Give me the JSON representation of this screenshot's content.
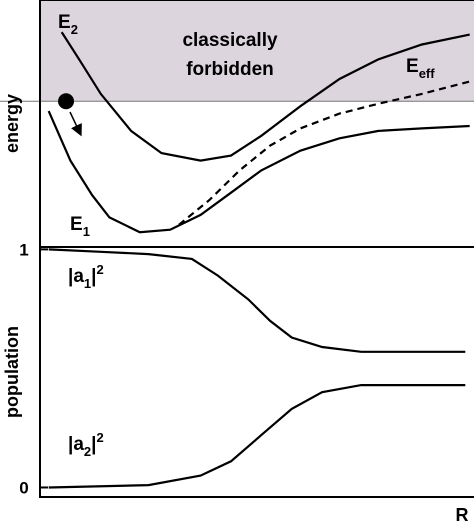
{
  "chart_data": [
    {
      "type": "line",
      "y_label": "energy",
      "annotation": [
        "classically",
        "forbidden"
      ],
      "shade_from": 5.9,
      "shade_color": "#ddd5de",
      "xlim": [
        0,
        10
      ],
      "ylim": [
        0,
        10
      ],
      "particle": {
        "x": 0.6,
        "y": 5.9
      },
      "series": [
        {
          "name_main": "E",
          "name_sub": "2",
          "color": "#000",
          "dash": false,
          "x": [
            0.5,
            0.9,
            1.4,
            2.1,
            2.8,
            3.7,
            4.4,
            5.1,
            6.0,
            6.9,
            7.8,
            8.8,
            9.9
          ],
          "values": [
            8.7,
            7.6,
            6.2,
            4.7,
            3.8,
            3.5,
            3.7,
            4.5,
            5.7,
            6.8,
            7.6,
            8.2,
            8.6
          ]
        },
        {
          "name_main": "E",
          "name_sub": "1",
          "color": "#000",
          "dash": false,
          "x": [
            0.2,
            0.7,
            1.2,
            1.6,
            2.3,
            3.0,
            3.7,
            4.4,
            5.1,
            6.0,
            6.9,
            7.8,
            8.8,
            9.9
          ],
          "values": [
            5.5,
            3.5,
            2.1,
            1.2,
            0.6,
            0.7,
            1.3,
            2.2,
            3.1,
            3.9,
            4.4,
            4.7,
            4.8,
            4.9
          ]
        },
        {
          "name_main": "E",
          "name_sub": "eff",
          "color": "#000",
          "dash": true,
          "x": [
            3.2,
            3.9,
            4.6,
            5.3,
            6.0,
            6.9,
            7.8,
            8.8,
            9.9
          ],
          "values": [
            0.9,
            1.9,
            3.1,
            4.1,
            4.8,
            5.4,
            5.8,
            6.2,
            6.7
          ]
        }
      ]
    },
    {
      "type": "line",
      "y_label": "population",
      "x_label": "R",
      "xlim": [
        0,
        10
      ],
      "ylim": [
        -0.04,
        1.01
      ],
      "yticks": [
        0,
        1
      ],
      "series": [
        {
          "name_main": "|a",
          "name_sub": "1",
          "name_close": "|",
          "name_sup": "2",
          "color": "#000",
          "dash": false,
          "x": [
            0.2,
            1.4,
            2.5,
            3.5,
            4.1,
            4.8,
            5.3,
            5.8,
            6.5,
            7.4,
            8.8,
            9.8
          ],
          "values": [
            1.0,
            0.99,
            0.98,
            0.96,
            0.89,
            0.79,
            0.7,
            0.63,
            0.59,
            0.57,
            0.57,
            0.57
          ]
        },
        {
          "name_main": "|a",
          "name_sub": "2",
          "name_close": "|",
          "name_sup": "2",
          "color": "#000",
          "dash": false,
          "x": [
            0.2,
            2.5,
            3.7,
            4.4,
            5.1,
            5.8,
            6.5,
            7.4,
            8.8,
            9.8
          ],
          "values": [
            0.0,
            0.01,
            0.05,
            0.11,
            0.22,
            0.33,
            0.4,
            0.43,
            0.43,
            0.43
          ]
        }
      ]
    }
  ]
}
